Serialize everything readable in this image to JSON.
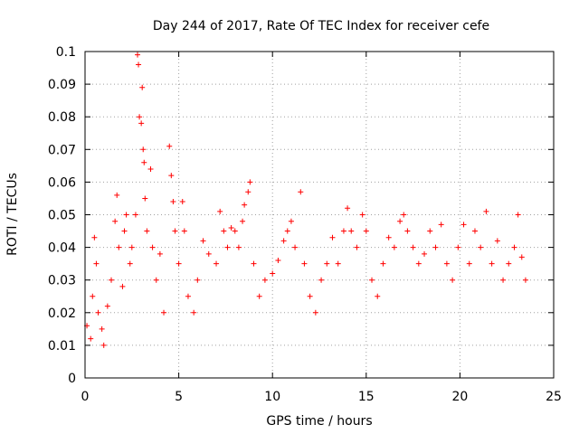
{
  "chart_data": {
    "type": "scatter",
    "title": "Day 244 of 2017, Rate Of TEC Index for receiver cefe",
    "xlabel": "GPS time / hours",
    "ylabel": "ROTI / TECUs",
    "xlim": [
      0,
      25
    ],
    "ylim": [
      0,
      0.1
    ],
    "x_ticks": [
      0,
      5,
      10,
      15,
      20,
      25
    ],
    "x_tick_labels": [
      "0",
      "5",
      "10",
      "15",
      "20",
      "25"
    ],
    "y_ticks": [
      0,
      0.01,
      0.02,
      0.03,
      0.04,
      0.05,
      0.06,
      0.07,
      0.08,
      0.09,
      0.1
    ],
    "y_tick_labels": [
      "0",
      "0.01",
      "0.02",
      "0.03",
      "0.04",
      "0.05",
      "0.06",
      "0.07",
      "0.08",
      "0.09",
      "0.1"
    ],
    "grid": true,
    "marker": "+",
    "color": "#ff0000",
    "series": [
      {
        "points": [
          [
            0.1,
            0.016
          ],
          [
            0.3,
            0.012
          ],
          [
            0.4,
            0.025
          ],
          [
            0.5,
            0.043
          ],
          [
            0.6,
            0.035
          ],
          [
            0.7,
            0.02
          ],
          [
            0.9,
            0.015
          ],
          [
            1.0,
            0.01
          ],
          [
            1.2,
            0.022
          ],
          [
            1.4,
            0.03
          ],
          [
            1.6,
            0.048
          ],
          [
            1.7,
            0.056
          ],
          [
            1.8,
            0.04
          ],
          [
            2.0,
            0.028
          ],
          [
            2.1,
            0.045
          ],
          [
            2.2,
            0.05
          ],
          [
            2.4,
            0.035
          ],
          [
            2.5,
            0.04
          ],
          [
            2.7,
            0.05
          ],
          [
            2.8,
            0.099
          ],
          [
            2.85,
            0.096
          ],
          [
            2.9,
            0.08
          ],
          [
            3.0,
            0.078
          ],
          [
            3.05,
            0.089
          ],
          [
            3.1,
            0.07
          ],
          [
            3.15,
            0.066
          ],
          [
            3.2,
            0.055
          ],
          [
            3.3,
            0.045
          ],
          [
            3.5,
            0.064
          ],
          [
            3.6,
            0.04
          ],
          [
            3.8,
            0.03
          ],
          [
            4.0,
            0.038
          ],
          [
            4.2,
            0.02
          ],
          [
            4.5,
            0.071
          ],
          [
            4.6,
            0.062
          ],
          [
            4.7,
            0.054
          ],
          [
            4.8,
            0.045
          ],
          [
            5.0,
            0.035
          ],
          [
            5.2,
            0.054
          ],
          [
            5.3,
            0.045
          ],
          [
            5.5,
            0.025
          ],
          [
            5.8,
            0.02
          ],
          [
            6.0,
            0.03
          ],
          [
            6.3,
            0.042
          ],
          [
            6.6,
            0.038
          ],
          [
            7.0,
            0.035
          ],
          [
            7.2,
            0.051
          ],
          [
            7.4,
            0.045
          ],
          [
            7.6,
            0.04
          ],
          [
            7.8,
            0.046
          ],
          [
            8.0,
            0.045
          ],
          [
            8.2,
            0.04
          ],
          [
            8.4,
            0.048
          ],
          [
            8.5,
            0.053
          ],
          [
            8.7,
            0.057
          ],
          [
            8.8,
            0.06
          ],
          [
            9.0,
            0.035
          ],
          [
            9.3,
            0.025
          ],
          [
            9.6,
            0.03
          ],
          [
            10.0,
            0.032
          ],
          [
            10.3,
            0.036
          ],
          [
            10.6,
            0.042
          ],
          [
            10.8,
            0.045
          ],
          [
            11.0,
            0.048
          ],
          [
            11.2,
            0.04
          ],
          [
            11.5,
            0.057
          ],
          [
            11.7,
            0.035
          ],
          [
            12.0,
            0.025
          ],
          [
            12.3,
            0.02
          ],
          [
            12.6,
            0.03
          ],
          [
            12.9,
            0.035
          ],
          [
            13.2,
            0.043
          ],
          [
            13.5,
            0.035
          ],
          [
            13.8,
            0.045
          ],
          [
            14.0,
            0.052
          ],
          [
            14.2,
            0.045
          ],
          [
            14.5,
            0.04
          ],
          [
            14.8,
            0.05
          ],
          [
            15.0,
            0.045
          ],
          [
            15.3,
            0.03
          ],
          [
            15.6,
            0.025
          ],
          [
            15.9,
            0.035
          ],
          [
            16.2,
            0.043
          ],
          [
            16.5,
            0.04
          ],
          [
            16.8,
            0.048
          ],
          [
            17.0,
            0.05
          ],
          [
            17.2,
            0.045
          ],
          [
            17.5,
            0.04
          ],
          [
            17.8,
            0.035
          ],
          [
            18.1,
            0.038
          ],
          [
            18.4,
            0.045
          ],
          [
            18.7,
            0.04
          ],
          [
            19.0,
            0.047
          ],
          [
            19.3,
            0.035
          ],
          [
            19.6,
            0.03
          ],
          [
            19.9,
            0.04
          ],
          [
            20.2,
            0.047
          ],
          [
            20.5,
            0.035
          ],
          [
            20.8,
            0.045
          ],
          [
            21.1,
            0.04
          ],
          [
            21.4,
            0.051
          ],
          [
            21.7,
            0.035
          ],
          [
            22.0,
            0.042
          ],
          [
            22.3,
            0.03
          ],
          [
            22.6,
            0.035
          ],
          [
            22.9,
            0.04
          ],
          [
            23.1,
            0.05
          ],
          [
            23.3,
            0.037
          ],
          [
            23.5,
            0.03
          ]
        ]
      }
    ]
  }
}
